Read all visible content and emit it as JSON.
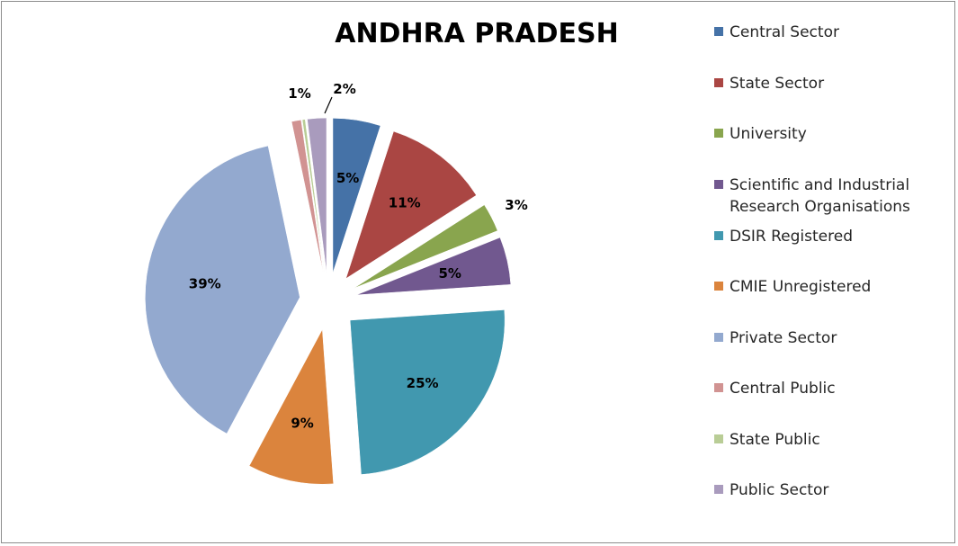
{
  "chart_data": {
    "type": "pie",
    "title": "ANDHRA PRADESH",
    "legend_position": "right",
    "categories": [
      "Central Sector",
      "State Sector",
      "University",
      "Scientific and Industrial Research Organisations",
      "DSIR Registered",
      "CMIE Unregistered",
      "Private Sector",
      "Central Public",
      "State Public",
      "Public Sector"
    ],
    "values": [
      5,
      11,
      3,
      5,
      25,
      9,
      39,
      1,
      0.3,
      2
    ],
    "labels": [
      "5%",
      "11%",
      "3%",
      "5%",
      "25%",
      "9%",
      "39%",
      "1%",
      "",
      "2%"
    ],
    "colors": [
      "#4572A7",
      "#AA4643",
      "#89A54E",
      "#71588F",
      "#4198AF",
      "#DB843D",
      "#93A9CF",
      "#D19392",
      "#B9CD96",
      "#A99BBD"
    ],
    "exploded": true
  }
}
